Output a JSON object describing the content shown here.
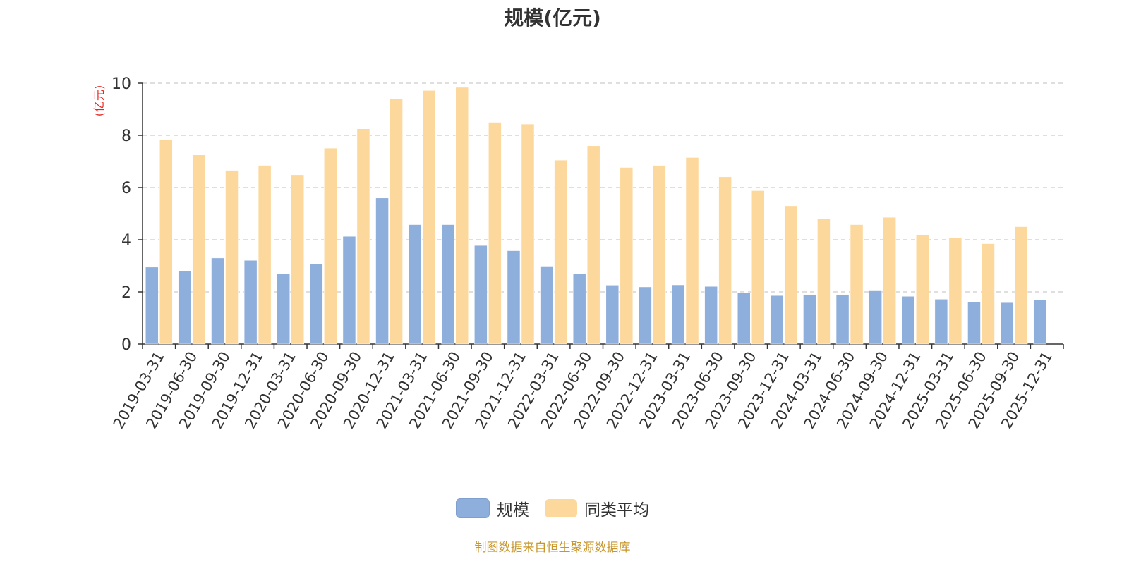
{
  "chart_data": {
    "type": "bar",
    "title": "规模(亿元)",
    "ylabel": "(亿元)",
    "xlabel": "",
    "ylim": [
      0,
      10
    ],
    "yticks": [
      0,
      2,
      4,
      6,
      8,
      10
    ],
    "grid": true,
    "legend_position": "bottom",
    "categories": [
      "2019-03-31",
      "2019-06-30",
      "2019-09-30",
      "2019-12-31",
      "2020-03-31",
      "2020-06-30",
      "2020-09-30",
      "2020-12-31",
      "2021-03-31",
      "2021-06-30",
      "2021-09-30",
      "2021-12-31",
      "2022-03-31",
      "2022-06-30",
      "2022-09-30",
      "2022-12-31",
      "2023-03-31",
      "2023-06-30",
      "2023-09-30",
      "2023-12-31",
      "2024-03-31",
      "2024-06-30",
      "2024-09-30",
      "2024-12-31",
      "2025-03-31",
      "2025-06-30",
      "2025-09-30",
      "2025-12-31"
    ],
    "series": [
      {
        "name": "规模",
        "color": "#8eaedb",
        "values": [
          2.95,
          2.81,
          3.3,
          3.21,
          2.69,
          3.07,
          4.13,
          5.6,
          4.58,
          4.58,
          3.78,
          3.58,
          2.96,
          2.69,
          2.26,
          2.19,
          2.27,
          2.21,
          1.98,
          1.86,
          1.9,
          1.9,
          2.04,
          1.83,
          1.72,
          1.62,
          1.59,
          1.69
        ]
      },
      {
        "name": "同类平均",
        "color": "#fdd89c",
        "values": [
          7.82,
          7.25,
          6.66,
          6.85,
          6.49,
          7.51,
          8.25,
          9.4,
          9.72,
          9.84,
          8.5,
          8.43,
          7.05,
          7.6,
          6.77,
          6.85,
          7.15,
          6.41,
          5.88,
          5.3,
          4.8,
          4.58,
          4.86,
          4.19,
          4.08,
          3.85,
          4.5,
          null
        ]
      }
    ],
    "source_note": "制图数据来自恒生聚源数据库"
  },
  "colors": {
    "axis": "#333333",
    "grid": "#cccccc",
    "ylabel": "#e8261f",
    "source": "#c8962a"
  }
}
